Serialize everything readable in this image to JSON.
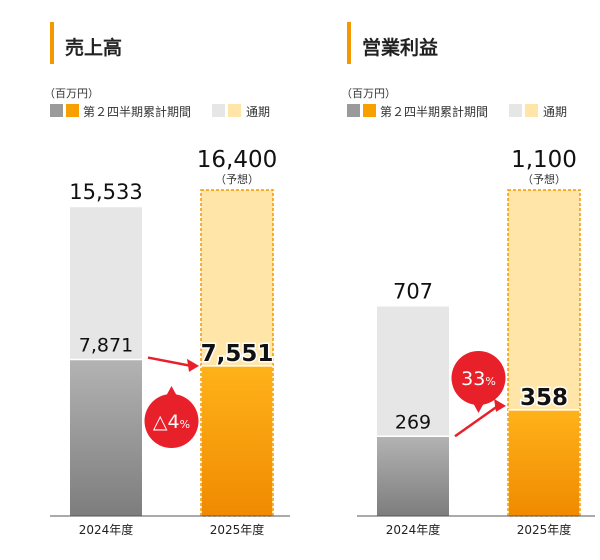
{
  "unit": "（百万円）",
  "legend": {
    "h1": "第２四半期累計期間",
    "full": "通期"
  },
  "colors": {
    "accent": "#f39800",
    "gray_full": "#e6e6e6",
    "gray_h1": "#9a9a9a",
    "orange_full": "#ffe6a8",
    "orange_h1": "#f7a000",
    "red": "#e8202a"
  },
  "chart_data": [
    {
      "type": "bar",
      "title": "売上高",
      "categories": [
        "2024年度",
        "2025年度"
      ],
      "series": [
        {
          "name": "通期",
          "values": [
            15533,
            16400
          ],
          "labels": [
            "15,533",
            "16,400"
          ]
        },
        {
          "name": "第２四半期累計期間",
          "values": [
            7871,
            7551
          ],
          "labels": [
            "7,871",
            "7,551"
          ]
        }
      ],
      "forecast_note": "（予想）",
      "change": "△4",
      "change_unit": "%",
      "ymax": 16400
    },
    {
      "type": "bar",
      "title": "営業利益",
      "categories": [
        "2024年度",
        "2025年度"
      ],
      "series": [
        {
          "name": "通期",
          "values": [
            707,
            1100
          ],
          "labels": [
            "707",
            "1,100"
          ]
        },
        {
          "name": "第２四半期累計期間",
          "values": [
            269,
            358
          ],
          "labels": [
            "269",
            "358"
          ]
        }
      ],
      "forecast_note": "（予想）",
      "change": "33",
      "change_unit": "%",
      "ymax": 1100
    }
  ]
}
